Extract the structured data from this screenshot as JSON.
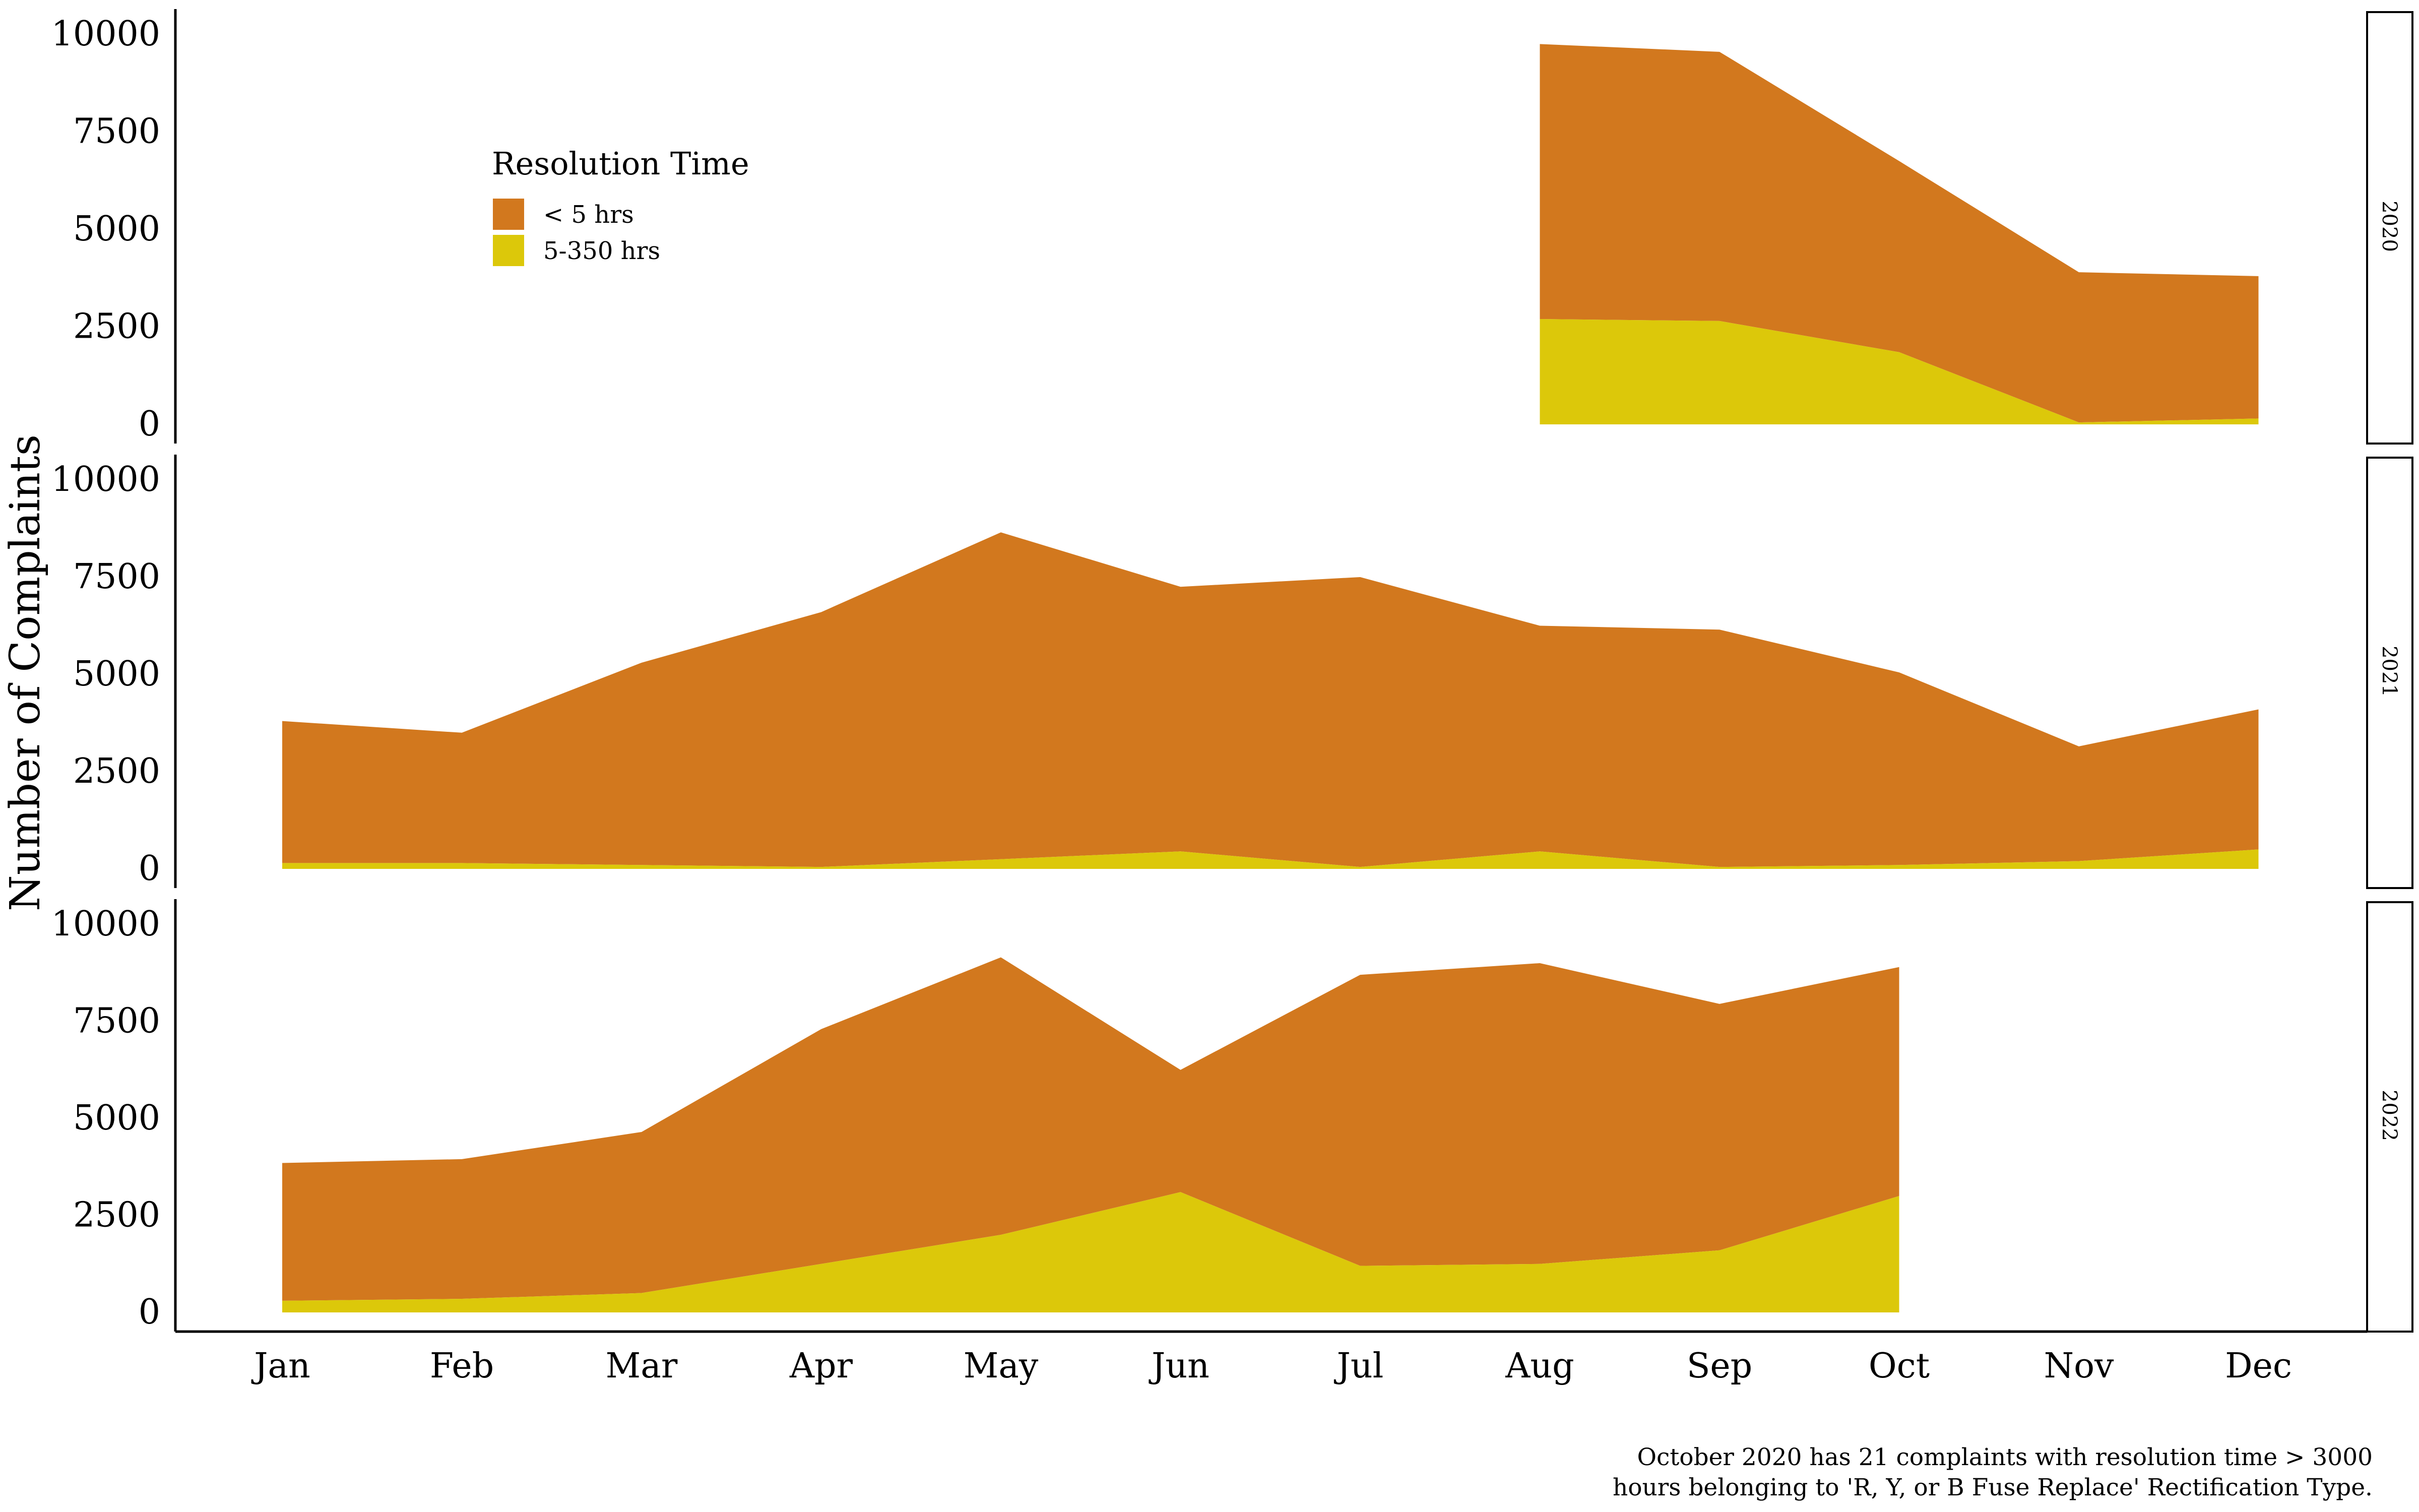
{
  "colors": {
    "lt5": "#D2781E",
    "mid": "#DCC80A",
    "axis": "#000000",
    "background": "#FFFFFF"
  },
  "caption": {
    "line1": "October 2020 has 21 complaints with resolution time > 3000",
    "line2": "hours belonging to 'R, Y, or B Fuse Replace' Rectification Type."
  },
  "chart_data": {
    "type": "area",
    "stacked": true,
    "ylabel": "Number of Complaints",
    "xlabel": "",
    "ylim": [
      0,
      10000
    ],
    "yticks": [
      0,
      2500,
      5000,
      7500,
      10000
    ],
    "categories": [
      "Jan",
      "Feb",
      "Mar",
      "Apr",
      "May",
      "Jun",
      "Jul",
      "Aug",
      "Sep",
      "Oct",
      "Nov",
      "Dec"
    ],
    "legend": {
      "title": "Resolution Time",
      "placement": "top-left",
      "entries": [
        "< 5 hrs",
        "5-350 hrs"
      ]
    },
    "facets": [
      {
        "label": "2020",
        "series": [
          {
            "name": "< 5 hrs",
            "color": "#D2781E",
            "values": [
              null,
              null,
              null,
              null,
              null,
              null,
              null,
              7050,
              6900,
              4900,
              3850,
              3650
            ]
          },
          {
            "name": "5-350 hrs",
            "color": "#DCC80A",
            "values": [
              null,
              null,
              null,
              null,
              null,
              null,
              null,
              2700,
              2650,
              1850,
              50,
              150
            ]
          }
        ]
      },
      {
        "label": "2021",
        "series": [
          {
            "name": "< 5 hrs",
            "color": "#D2781E",
            "values": [
              3650,
              3350,
              5200,
              6550,
              8400,
              6800,
              7450,
              5800,
              6100,
              4950,
              2950,
              3600
            ]
          },
          {
            "name": "5-350 hrs",
            "color": "#DCC80A",
            "values": [
              150,
              150,
              100,
              50,
              250,
              450,
              50,
              450,
              50,
              100,
              200,
              500
            ]
          }
        ]
      },
      {
        "label": "2022",
        "series": [
          {
            "name": "< 5 hrs",
            "color": "#D2781E",
            "values": [
              3550,
              3600,
              4150,
              6050,
              7150,
              3150,
              7500,
              7750,
              6350,
              5900,
              null,
              null
            ]
          },
          {
            "name": "5-350 hrs",
            "color": "#DCC80A",
            "values": [
              300,
              350,
              500,
              1250,
              2000,
              3100,
              1200,
              1250,
              1600,
              3000,
              null,
              null
            ]
          }
        ]
      }
    ],
    "grid": false
  }
}
